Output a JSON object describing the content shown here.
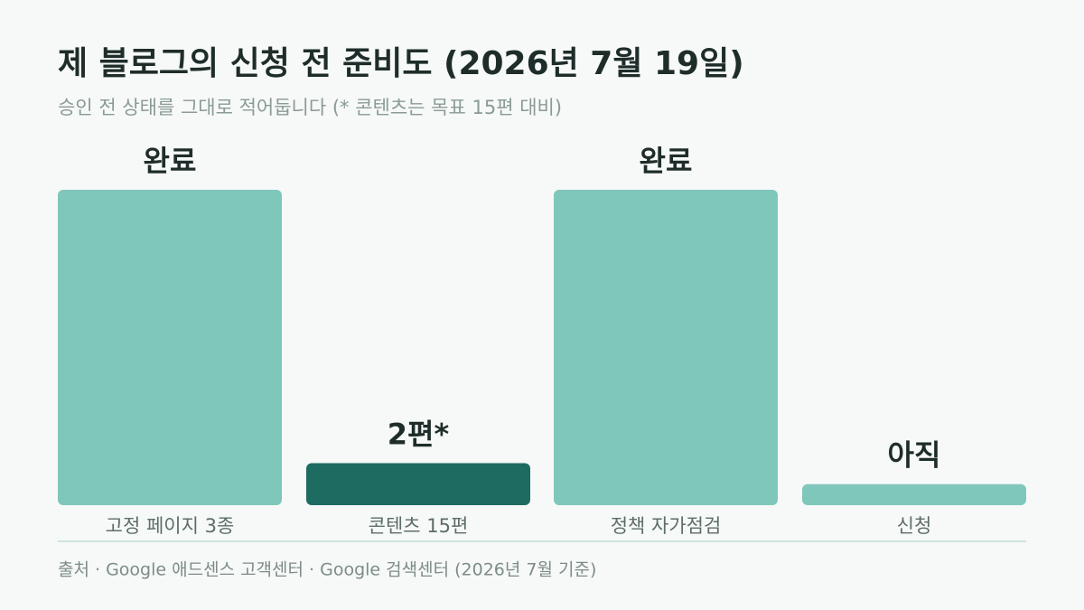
{
  "chart_data": {
    "type": "bar",
    "title": "제 블로그의 신청 전 준비도 (2026년 7월 19일)",
    "subtitle": "승인 전 상태를 그대로 적어둡니다 (* 콘텐츠는 목표 15편 대비)",
    "categories": [
      "고정 페이지 3종",
      "콘텐츠 15편",
      "정책 자가점검",
      "신청"
    ],
    "values": [
      15,
      2,
      15,
      1
    ],
    "value_labels": [
      "완료",
      "2편*",
      "완료",
      "아직"
    ],
    "colors": [
      "#80c7bb",
      "#1e6b62",
      "#80c7bb",
      "#80c7bb"
    ],
    "ylim": [
      0,
      15
    ],
    "source": "출처 · Google 애드센스 고객센터 · Google 검색센터 (2026년 7월 기준)"
  }
}
